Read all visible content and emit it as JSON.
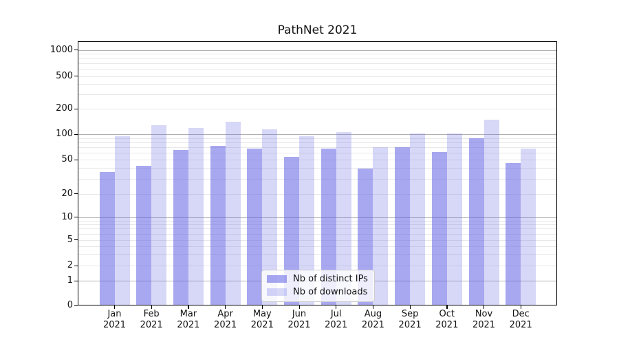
{
  "chart_data": {
    "type": "bar",
    "title": "PathNet 2021",
    "categories": [
      "Jan 2021",
      "Feb 2021",
      "Mar 2021",
      "Apr 2021",
      "May 2021",
      "Jun 2021",
      "Jul 2021",
      "Aug 2021",
      "Sep 2021",
      "Oct 2021",
      "Nov 2021",
      "Dec 2021"
    ],
    "series": [
      {
        "name": "Nb of distinct IPs",
        "color": "rgba(97, 97, 228, 0.55)",
        "values": [
          36,
          42,
          65,
          73,
          68,
          54,
          68,
          39,
          70,
          61,
          90,
          46
        ]
      },
      {
        "name": "Nb of downloads",
        "color": "rgba(97, 97, 228, 0.25)",
        "values": [
          94,
          128,
          118,
          140,
          113,
          95,
          105,
          70,
          102,
          101,
          149,
          68
        ]
      }
    ],
    "xlabel": "",
    "ylabel": "",
    "y_scale": "symlog",
    "y_ticks": [
      0,
      1,
      2,
      5,
      10,
      20,
      50,
      100,
      200,
      500,
      1000
    ],
    "y_minor_gridlines": [
      2,
      3,
      4,
      5,
      6,
      7,
      8,
      9,
      20,
      30,
      40,
      50,
      60,
      70,
      80,
      90,
      200,
      300,
      400,
      500,
      600,
      700,
      800,
      900
    ],
    "y_major_gridlines": [
      1,
      10,
      100,
      1000
    ],
    "ylim": [
      0,
      1500
    ],
    "grid": true,
    "legend_position": "lower center",
    "colors": {
      "bar_base": "#6161e4",
      "major_grid": "#b0b0b0",
      "minor_grid": "#e8e8e8",
      "spine": "#000000",
      "text": "#111111"
    }
  }
}
